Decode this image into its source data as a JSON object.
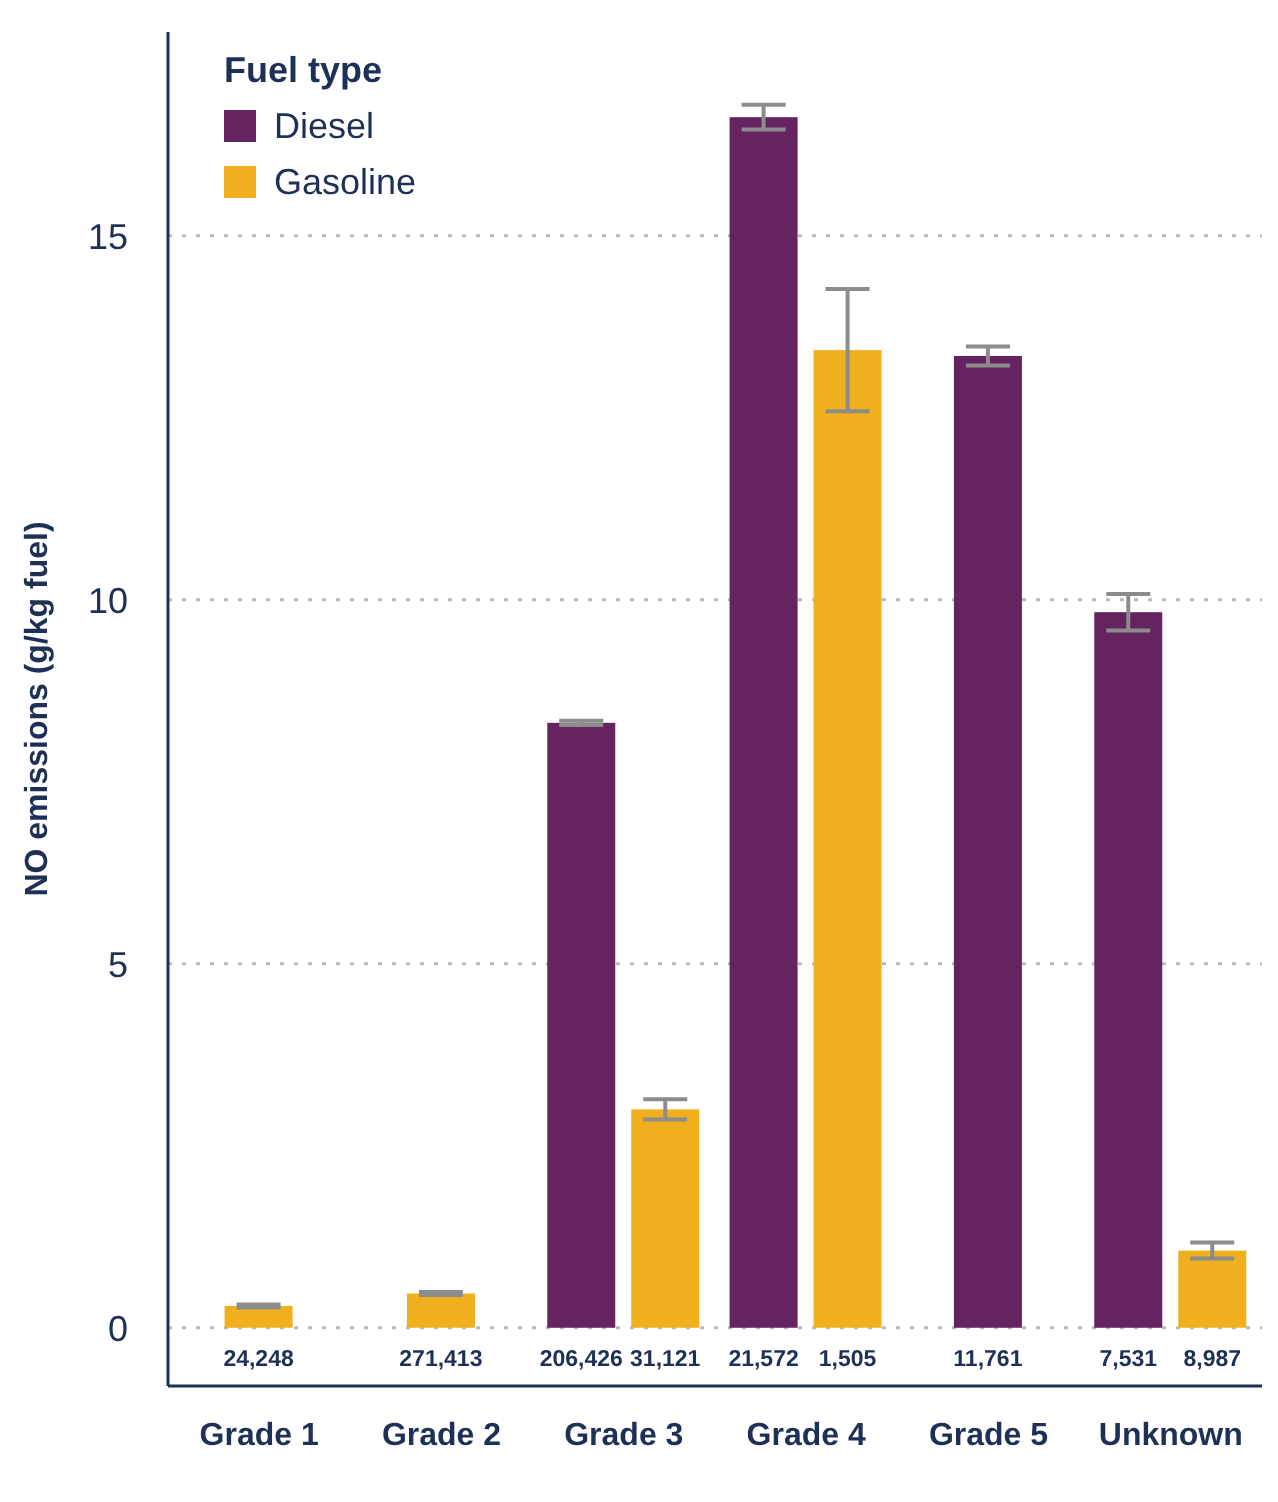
{
  "chart_data": {
    "type": "bar",
    "ylabel": "NO emissions (g/kg fuel)",
    "legend_title": "Fuel type",
    "categories": [
      "Grade 1",
      "Grade 2",
      "Grade 3",
      "Grade 4",
      "Grade 5",
      "Unknown"
    ],
    "series": [
      {
        "name": "Diesel",
        "color": "#652361",
        "values": [
          null,
          null,
          8.31,
          16.63,
          13.35,
          9.83
        ],
        "errors": [
          null,
          null,
          0.03,
          0.17,
          0.13,
          0.25
        ]
      },
      {
        "name": "Gasoline",
        "color": "#f0b01e",
        "values": [
          0.3,
          0.47,
          3.0,
          13.43,
          null,
          1.06
        ],
        "errors": [
          0.02,
          0.02,
          0.14,
          0.84,
          null,
          0.11
        ]
      }
    ],
    "annotations": [
      "24,248",
      "271,413",
      "206,426",
      "31,121",
      "21,572",
      "1,505",
      "11,761",
      "7,531",
      "8,987"
    ],
    "ylim": [
      -0.8,
      17.8
    ],
    "yticks": [
      0,
      5,
      10,
      15
    ],
    "grid": "y",
    "legend": "top left"
  }
}
